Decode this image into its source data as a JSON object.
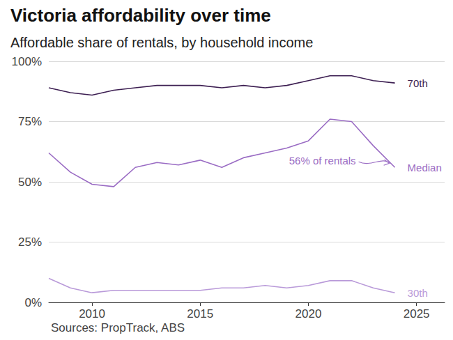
{
  "chart_data": {
    "type": "line",
    "title": "Victoria affordability over time",
    "subtitle": "Affordable share of rentals, by household income",
    "source": "Sources: PropTrack, ABS",
    "x": [
      2008,
      2009,
      2010,
      2011,
      2012,
      2013,
      2014,
      2015,
      2016,
      2017,
      2018,
      2019,
      2020,
      2021,
      2022,
      2023,
      2024
    ],
    "series": [
      {
        "name": "70th",
        "color": "#3d1f52",
        "values": [
          89,
          87,
          86,
          88,
          89,
          90,
          90,
          90,
          89,
          90,
          89,
          90,
          92,
          94,
          94,
          92,
          91
        ]
      },
      {
        "name": "Median",
        "color": "#9a6cc4",
        "values": [
          62,
          54,
          49,
          48,
          56,
          58,
          57,
          59,
          56,
          60,
          62,
          64,
          67,
          76,
          75,
          65,
          56
        ]
      },
      {
        "name": "30th",
        "color": "#b99ad9",
        "values": [
          10,
          6,
          4,
          5,
          5,
          5,
          5,
          5,
          6,
          6,
          7,
          6,
          7,
          9,
          9,
          6,
          4
        ]
      }
    ],
    "annotations": [
      {
        "text": "56% of rentals",
        "x": 2024,
        "y": 56,
        "color": "#9a6cc4"
      }
    ],
    "xlim": [
      2008,
      2026.3
    ],
    "xticks": [
      2010,
      2015,
      2020,
      2025
    ],
    "ylim": [
      0,
      100
    ],
    "yticks": [
      {
        "value": 0,
        "label": "0%"
      },
      {
        "value": 25,
        "label": "25%"
      },
      {
        "value": 50,
        "label": "50%"
      },
      {
        "value": 75,
        "label": "75%"
      },
      {
        "value": 100,
        "label": "100%"
      }
    ],
    "grid": true
  }
}
